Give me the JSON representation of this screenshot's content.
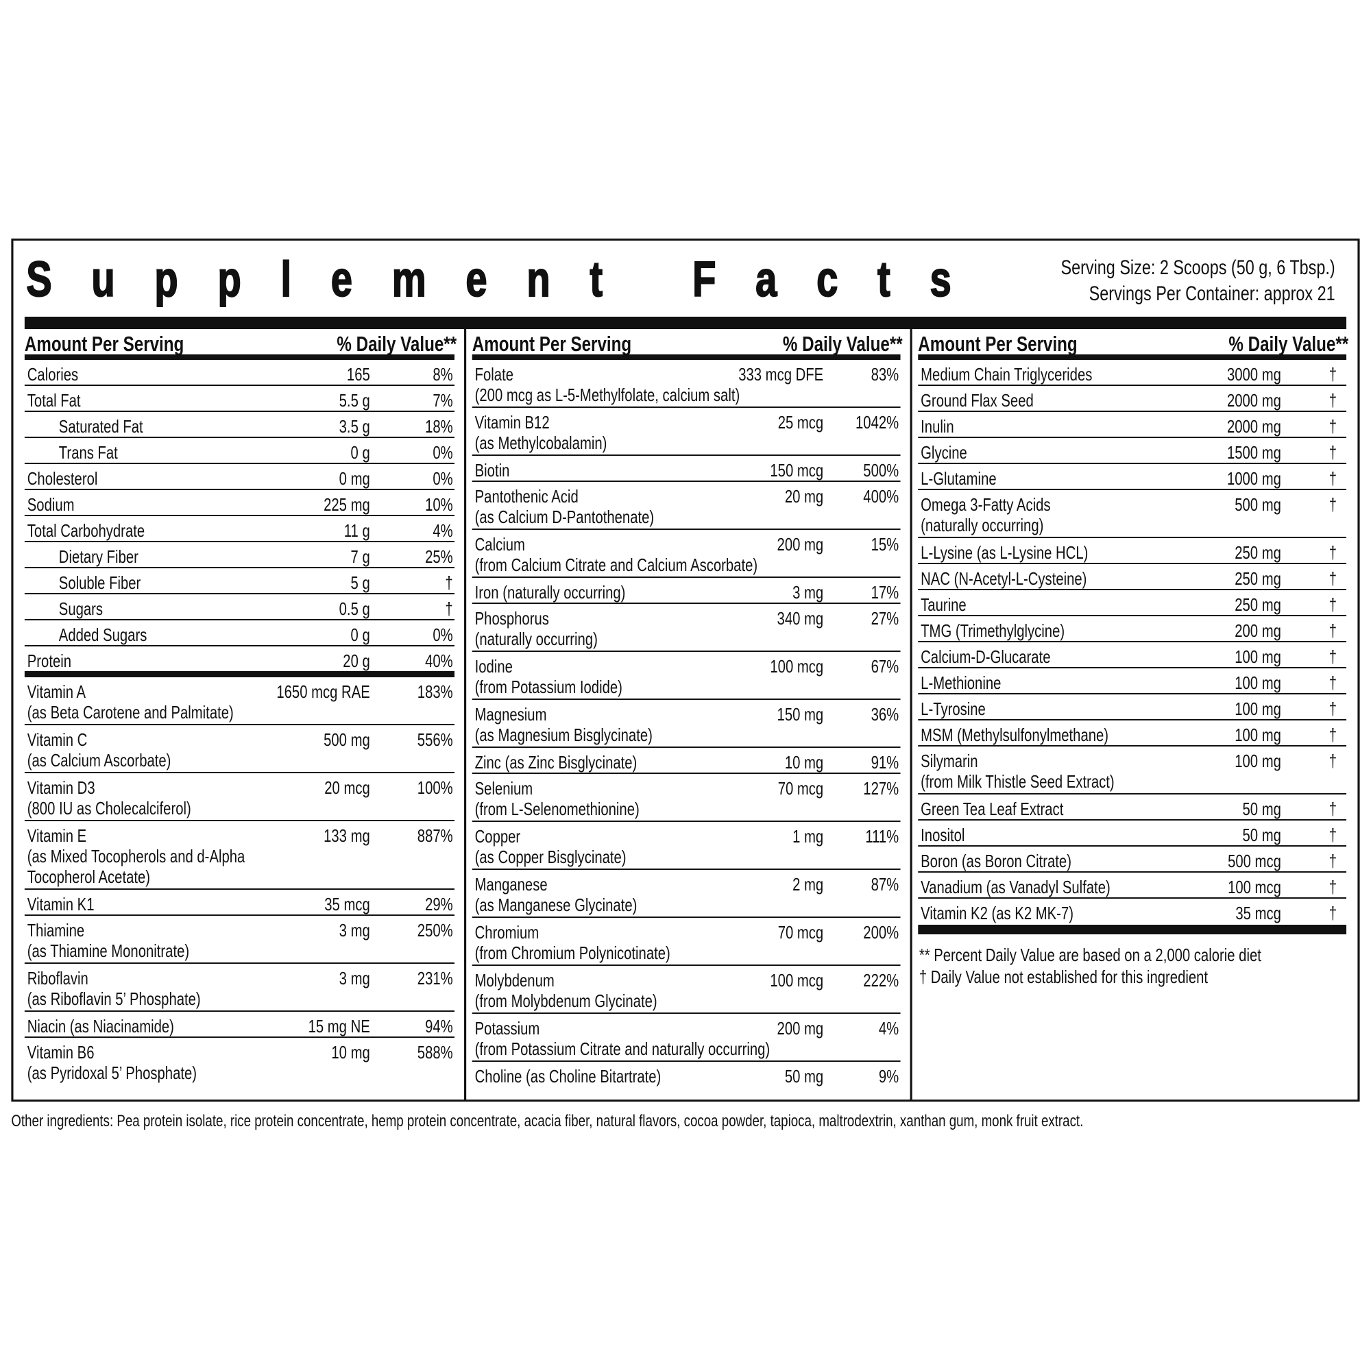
{
  "title": "Supplement Facts",
  "serving_size": "Serving Size:  2 Scoops (50 g, 6 Tbsp.)",
  "servings_per_container": "Servings Per Container:  approx 21",
  "header": {
    "amount_label": "Amount Per Serving",
    "dv_label": "% Daily Value**"
  },
  "columns": [
    {
      "rows": [
        {
          "name": "Calories",
          "amount": "165",
          "dv": "8%"
        },
        {
          "name": "Total Fat",
          "amount": "5.5 g",
          "dv": "7%"
        },
        {
          "name": "Saturated Fat",
          "amount": "3.5 g",
          "dv": "18%",
          "indent": true
        },
        {
          "name": "Trans Fat",
          "amount": "0 g",
          "dv": "0%",
          "indent": true
        },
        {
          "name": "Cholesterol",
          "amount": "0 mg",
          "dv": "0%"
        },
        {
          "name": "Sodium",
          "amount": "225 mg",
          "dv": "10%"
        },
        {
          "name": "Total Carbohydrate",
          "amount": "11 g",
          "dv": "4%"
        },
        {
          "name": "Dietary Fiber",
          "amount": "7 g",
          "dv": "25%",
          "indent": true
        },
        {
          "name": "Soluble Fiber",
          "amount": "5 g",
          "dv": "†",
          "indent": true
        },
        {
          "name": "Sugars",
          "amount": "0.5 g",
          "dv": "†",
          "indent": true
        },
        {
          "name": "Added Sugars",
          "amount": "0 g",
          "dv": "0%",
          "indent": true
        },
        {
          "name": "Protein",
          "amount": "20 g",
          "dv": "40%",
          "thick": true
        },
        {
          "name": "Vitamin A",
          "note": [
            "(as Beta Carotene and Palmitate)"
          ],
          "amount": "1650 mcg RAE",
          "dv": "183%"
        },
        {
          "name": "Vitamin C",
          "note": [
            "(as Calcium Ascorbate)"
          ],
          "amount": "500 mg",
          "dv": "556%"
        },
        {
          "name": "Vitamin D3",
          "note": [
            "(800 IU as Cholecalciferol)"
          ],
          "amount": "20 mcg",
          "dv": "100%"
        },
        {
          "name": "Vitamin E",
          "note": [
            "(as Mixed Tocopherols and d-Alpha",
            "Tocopherol Acetate)"
          ],
          "amount": "133 mg",
          "dv": "887%"
        },
        {
          "name": "Vitamin K1",
          "amount": "35 mcg",
          "dv": "29%"
        },
        {
          "name": "Thiamine",
          "note": [
            "(as Thiamine Mononitrate)"
          ],
          "amount": "3 mg",
          "dv": "250%"
        },
        {
          "name": "Riboflavin",
          "note": [
            "(as Riboflavin 5’ Phosphate)"
          ],
          "amount": "3 mg",
          "dv": "231%"
        },
        {
          "name": "Niacin (as Niacinamide)",
          "amount": "15 mg NE",
          "dv": "94%"
        },
        {
          "name": "Vitamin B6",
          "note": [
            "(as Pyridoxal 5’ Phosphate)"
          ],
          "amount": "10 mg",
          "dv": "588%"
        }
      ]
    },
    {
      "rows": [
        {
          "name": "Folate",
          "note": [
            "(200 mcg as L-5-Methylfolate, calcium salt)"
          ],
          "amount": "333 mcg DFE",
          "dv": "83%"
        },
        {
          "name": "Vitamin B12",
          "note": [
            "(as Methylcobalamin)"
          ],
          "amount": "25 mcg",
          "dv": "1042%"
        },
        {
          "name": "Biotin",
          "amount": "150 mcg",
          "dv": "500%"
        },
        {
          "name": "Pantothenic Acid",
          "note": [
            "(as Calcium D-Pantothenate)"
          ],
          "amount": "20 mg",
          "dv": "400%"
        },
        {
          "name": "Calcium",
          "note": [
            "(from Calcium Citrate and Calcium Ascorbate)"
          ],
          "amount": "200 mg",
          "dv": "15%"
        },
        {
          "name": "Iron (naturally occurring)",
          "amount": "3 mg",
          "dv": "17%"
        },
        {
          "name": "Phosphorus",
          "note": [
            "(naturally occurring)"
          ],
          "amount": "340 mg",
          "dv": "27%"
        },
        {
          "name": "Iodine",
          "note": [
            "(from Potassium Iodide)"
          ],
          "amount": "100 mcg",
          "dv": "67%"
        },
        {
          "name": "Magnesium",
          "note": [
            "(as Magnesium Bisglycinate)"
          ],
          "amount": "150 mg",
          "dv": "36%"
        },
        {
          "name": "Zinc (as Zinc Bisglycinate)",
          "amount": "10 mg",
          "dv": "91%"
        },
        {
          "name": "Selenium",
          "note": [
            "(from L-Selenomethionine)"
          ],
          "amount": "70 mcg",
          "dv": "127%"
        },
        {
          "name": "Copper",
          "note": [
            "(as Copper Bisglycinate)"
          ],
          "amount": "1 mg",
          "dv": "111%"
        },
        {
          "name": "Manganese",
          "note": [
            "(as Manganese Glycinate)"
          ],
          "amount": "2 mg",
          "dv": "87%"
        },
        {
          "name": "Chromium",
          "note": [
            "(from Chromium Polynicotinate)"
          ],
          "amount": "70 mcg",
          "dv": "200%"
        },
        {
          "name": "Molybdenum",
          "note": [
            "(from Molybdenum Glycinate)"
          ],
          "amount": "100 mcg",
          "dv": "222%"
        },
        {
          "name": "Potassium",
          "note": [
            "(from Potassium Citrate and naturally occurring)"
          ],
          "amount": "200 mg",
          "dv": "4%"
        },
        {
          "name": "Choline (as Choline Bitartrate)",
          "amount": "50 mg",
          "dv": "9%"
        }
      ]
    },
    {
      "rows": [
        {
          "name": "Medium Chain Triglycerides",
          "amount": "3000 mg",
          "dv": "†"
        },
        {
          "name": "Ground Flax Seed",
          "amount": "2000 mg",
          "dv": "†"
        },
        {
          "name": "Inulin",
          "amount": "2000 mg",
          "dv": "†"
        },
        {
          "name": "Glycine",
          "amount": "1500 mg",
          "dv": "†"
        },
        {
          "name": "L-Glutamine",
          "amount": "1000 mg",
          "dv": "†"
        },
        {
          "name": "Omega 3-Fatty Acids",
          "note": [
            "(naturally occurring)"
          ],
          "amount": "500 mg",
          "dv": "†"
        },
        {
          "name": "L-Lysine (as L-Lysine HCL)",
          "amount": "250 mg",
          "dv": "†"
        },
        {
          "name": "NAC (N-Acetyl-L-Cysteine)",
          "amount": "250 mg",
          "dv": "†"
        },
        {
          "name": "Taurine",
          "amount": "250 mg",
          "dv": "†"
        },
        {
          "name": "TMG (Trimethylglycine)",
          "amount": "200 mg",
          "dv": "†"
        },
        {
          "name": "Calcium-D-Glucarate",
          "amount": "100 mg",
          "dv": "†"
        },
        {
          "name": "L-Methionine",
          "amount": "100 mg",
          "dv": "†"
        },
        {
          "name": "L-Tyrosine",
          "amount": "100 mg",
          "dv": "†"
        },
        {
          "name": "MSM (Methylsulfonylmethane)",
          "amount": "100 mg",
          "dv": "†"
        },
        {
          "name": "Silymarin",
          "note": [
            "(from Milk Thistle Seed Extract)"
          ],
          "amount": "100 mg",
          "dv": "†"
        },
        {
          "name": "Green Tea Leaf Extract",
          "amount": "50 mg",
          "dv": "†"
        },
        {
          "name": "Inositol",
          "amount": "50 mg",
          "dv": "†"
        },
        {
          "name": "Boron (as Boron Citrate)",
          "amount": "500 mcg",
          "dv": "†"
        },
        {
          "name": "Vanadium (as Vanadyl Sulfate)",
          "amount": "100 mcg",
          "dv": "†"
        },
        {
          "name": "Vitamin K2 (as K2 MK-7)",
          "amount": "35 mcg",
          "dv": "†"
        }
      ]
    }
  ],
  "footnotes": [
    "** Percent Daily Value are based on a 2,000 calorie diet",
    "† Daily Value not established for this ingredient"
  ],
  "other_ingredients": "Other ingredients: Pea protein isolate, rice protein concentrate, hemp protein concentrate, acacia fiber, natural flavors, cocoa powder, tapioca, maltrodextrin, xanthan gum, monk fruit extract."
}
